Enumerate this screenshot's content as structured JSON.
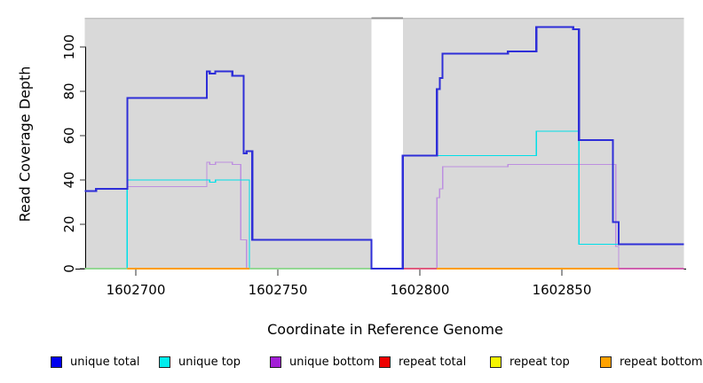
{
  "axes": {
    "x_label": "Coordinate in Reference Genome",
    "y_label": "Read Coverage Depth"
  },
  "legend": {
    "position": "bottom",
    "items": [
      {
        "label": "unique total",
        "color": "#0000ee"
      },
      {
        "label": "unique top",
        "color": "#00eeee"
      },
      {
        "label": "unique bottom",
        "color": "#a21fd6"
      },
      {
        "label": "repeat total",
        "color": "#ee0000"
      },
      {
        "label": "repeat top",
        "color": "#f5f500"
      },
      {
        "label": "repeat bottom",
        "color": "#ffa200"
      }
    ]
  },
  "chart_data": {
    "type": "line",
    "title": "",
    "xlabel": "Coordinate in Reference Genome",
    "ylabel": "Read Coverage Depth",
    "grid": false,
    "legend_position": "bottom",
    "x_ticks": [
      1602700,
      1602750,
      1602800,
      1602850
    ],
    "y_ticks": [
      0,
      20,
      40,
      60,
      80,
      100
    ],
    "x_range": [
      1602682,
      1602893
    ],
    "y_range": [
      0,
      113
    ],
    "panel_color": "#d9d9d9",
    "background_regions": [
      {
        "from": 1602682,
        "to": 1602783
      },
      {
        "from": 1602794,
        "to": 1602893
      }
    ],
    "gap_region": {
      "from": 1602783,
      "to": 1602794
    },
    "series": [
      {
        "name": "repeat total",
        "color": "#dd1111",
        "width": 1.4,
        "steps": [
          [
            1602682,
            0
          ]
        ],
        "end": 1602893
      },
      {
        "name": "repeat top",
        "color": "#f2f20a",
        "width": 1.4,
        "steps": [
          [
            1602682,
            0
          ]
        ],
        "end": 1602893
      },
      {
        "name": "repeat bottom",
        "color": "#ff9d00",
        "width": 1.4,
        "steps": [
          [
            1602682,
            0
          ]
        ],
        "end": 1602893
      },
      {
        "name": "unique bottom",
        "color": "#bd8fe0",
        "width": 1.4,
        "steps": [
          [
            1602682,
            0
          ],
          [
            1602697,
            37
          ],
          [
            1602725,
            48
          ],
          [
            1602726,
            47
          ],
          [
            1602728,
            48
          ],
          [
            1602734,
            47
          ],
          [
            1602737,
            13
          ],
          [
            1602739,
            0
          ],
          [
            1602806,
            32
          ],
          [
            1602807,
            36
          ],
          [
            1602808,
            46
          ],
          [
            1602831,
            47
          ],
          [
            1602869,
            10
          ],
          [
            1602870,
            0
          ]
        ],
        "end": 1602893
      },
      {
        "name": "unique top",
        "color": "#00dfe8",
        "width": 1.4,
        "steps": [
          [
            1602682,
            0
          ],
          [
            1602697,
            40
          ],
          [
            1602726,
            39
          ],
          [
            1602728,
            40
          ],
          [
            1602740,
            0
          ],
          [
            1602794,
            51
          ],
          [
            1602841,
            62
          ],
          [
            1602856,
            11
          ]
        ],
        "end": 1602893
      },
      {
        "name": "unique total",
        "color": "#2e2ed8",
        "width": 2.2,
        "steps": [
          [
            1602682,
            35
          ],
          [
            1602686,
            36
          ],
          [
            1602697,
            77
          ],
          [
            1602725,
            89
          ],
          [
            1602726,
            88
          ],
          [
            1602728,
            89
          ],
          [
            1602734,
            87
          ],
          [
            1602738,
            52
          ],
          [
            1602739,
            53
          ],
          [
            1602741,
            13
          ],
          [
            1602783,
            0
          ],
          [
            1602794,
            51
          ],
          [
            1602806,
            81
          ],
          [
            1602807,
            86
          ],
          [
            1602808,
            97
          ],
          [
            1602831,
            98
          ],
          [
            1602841,
            109
          ],
          [
            1602854,
            108
          ],
          [
            1602856,
            58
          ],
          [
            1602868,
            21
          ],
          [
            1602870,
            11
          ]
        ],
        "end": 1602893
      }
    ],
    "baseline_overdraw": [
      {
        "from": 1602682,
        "to": 1602697,
        "color": "#93d793"
      },
      {
        "from": 1602697,
        "to": 1602740,
        "color": "#ff9d00"
      },
      {
        "from": 1602740,
        "to": 1602783,
        "color": "#93d793"
      },
      {
        "from": 1602794,
        "to": 1602806,
        "color": "#e05a7e"
      },
      {
        "from": 1602806,
        "to": 1602870,
        "color": "#ff9d00"
      },
      {
        "from": 1602870,
        "to": 1602893,
        "color": "#cf5fae"
      }
    ]
  }
}
